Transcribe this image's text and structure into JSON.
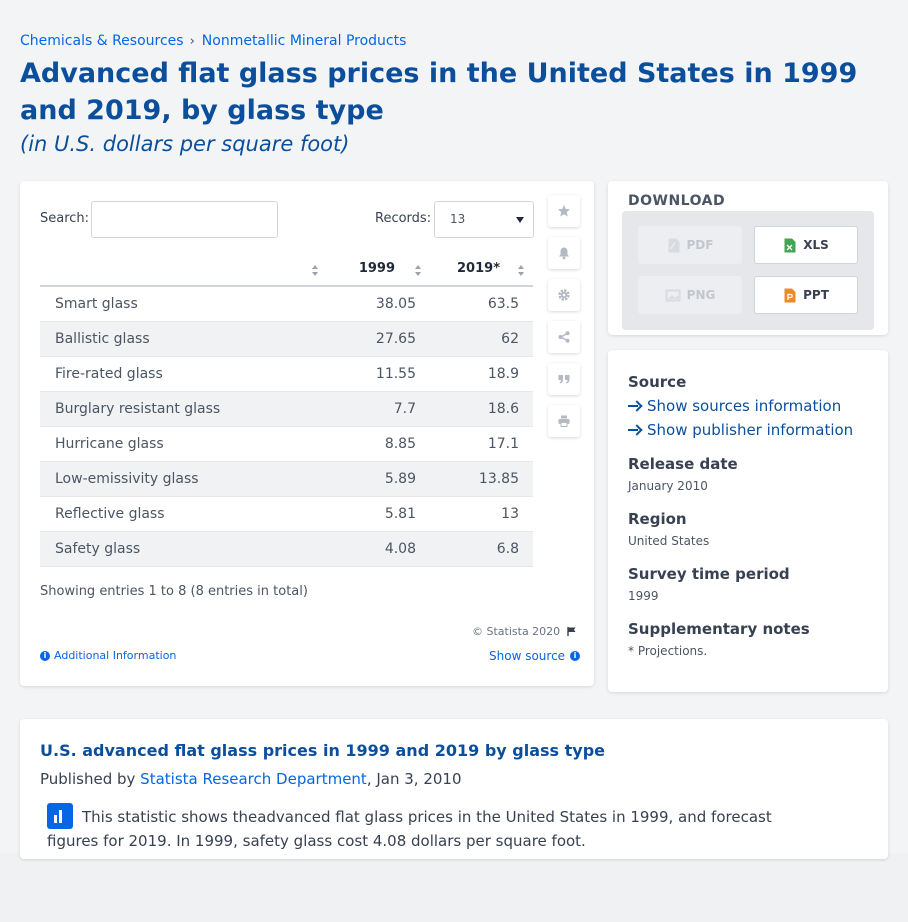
{
  "breadcrumb": {
    "items": [
      "Chemicals & Resources",
      "Nonmetallic Mineral Products"
    ],
    "separator": "›"
  },
  "header": {
    "title": "Advanced flat glass prices in the United States in 1999 and 2019, by glass type",
    "subtitle": "(in U.S. dollars per square foot)"
  },
  "table_controls": {
    "search_label": "Search:",
    "search_value": "",
    "records_label": "Records:",
    "records_value": "13"
  },
  "table": {
    "columns": [
      "",
      "1999",
      "2019*"
    ],
    "rows": [
      {
        "label": "Smart glass",
        "v1999": "38.05",
        "v2019": "63.5"
      },
      {
        "label": "Ballistic glass",
        "v1999": "27.65",
        "v2019": "62"
      },
      {
        "label": "Fire-rated glass",
        "v1999": "11.55",
        "v2019": "18.9"
      },
      {
        "label": "Burglary resistant glass",
        "v1999": "7.7",
        "v2019": "18.6"
      },
      {
        "label": "Hurricane glass",
        "v1999": "8.85",
        "v2019": "17.1"
      },
      {
        "label": "Low-emissivity glass",
        "v1999": "5.89",
        "v2019": "13.85"
      },
      {
        "label": "Reflective glass",
        "v1999": "5.81",
        "v2019": "13"
      },
      {
        "label": "Safety glass",
        "v1999": "4.08",
        "v2019": "6.8"
      }
    ],
    "showing": "Showing entries 1 to 8 (8 entries in total)",
    "copyright": "© Statista 2020",
    "additional_info": "Additional Information",
    "show_source": "Show source"
  },
  "toolbar": {
    "icons": [
      "star-icon",
      "bell-icon",
      "gear-icon",
      "share-icon",
      "quote-icon",
      "print-icon"
    ]
  },
  "download": {
    "title": "DOWNLOAD",
    "pdf": "PDF",
    "xls": "XLS",
    "png": "PNG",
    "ppt": "PPT"
  },
  "info": {
    "source_heading": "Source",
    "show_sources": "Show sources information",
    "show_publisher": "Show publisher information",
    "release_heading": "Release date",
    "release_value": "January 2010",
    "region_heading": "Region",
    "region_value": "United States",
    "survey_heading": "Survey time period",
    "survey_value": "1999",
    "notes_heading": "Supplementary notes",
    "notes_value": "* Projections."
  },
  "description": {
    "title": "U.S. advanced flat glass prices in 1999 and 2019 by glass type",
    "published_prefix": "Published by",
    "publisher": "Statista Research Department",
    "published_date": ", Jan 3, 2010",
    "text": "This statistic shows theadvanced flat glass prices in the United States in 1999, and forecast figures for 2019. In 1999, safety glass cost 4.08 dollars per square foot."
  },
  "colors": {
    "accent": "#0666e5",
    "title_blue": "#0b4f9c",
    "xls_green": "#3fa652",
    "ppt_orange": "#f08a24"
  }
}
